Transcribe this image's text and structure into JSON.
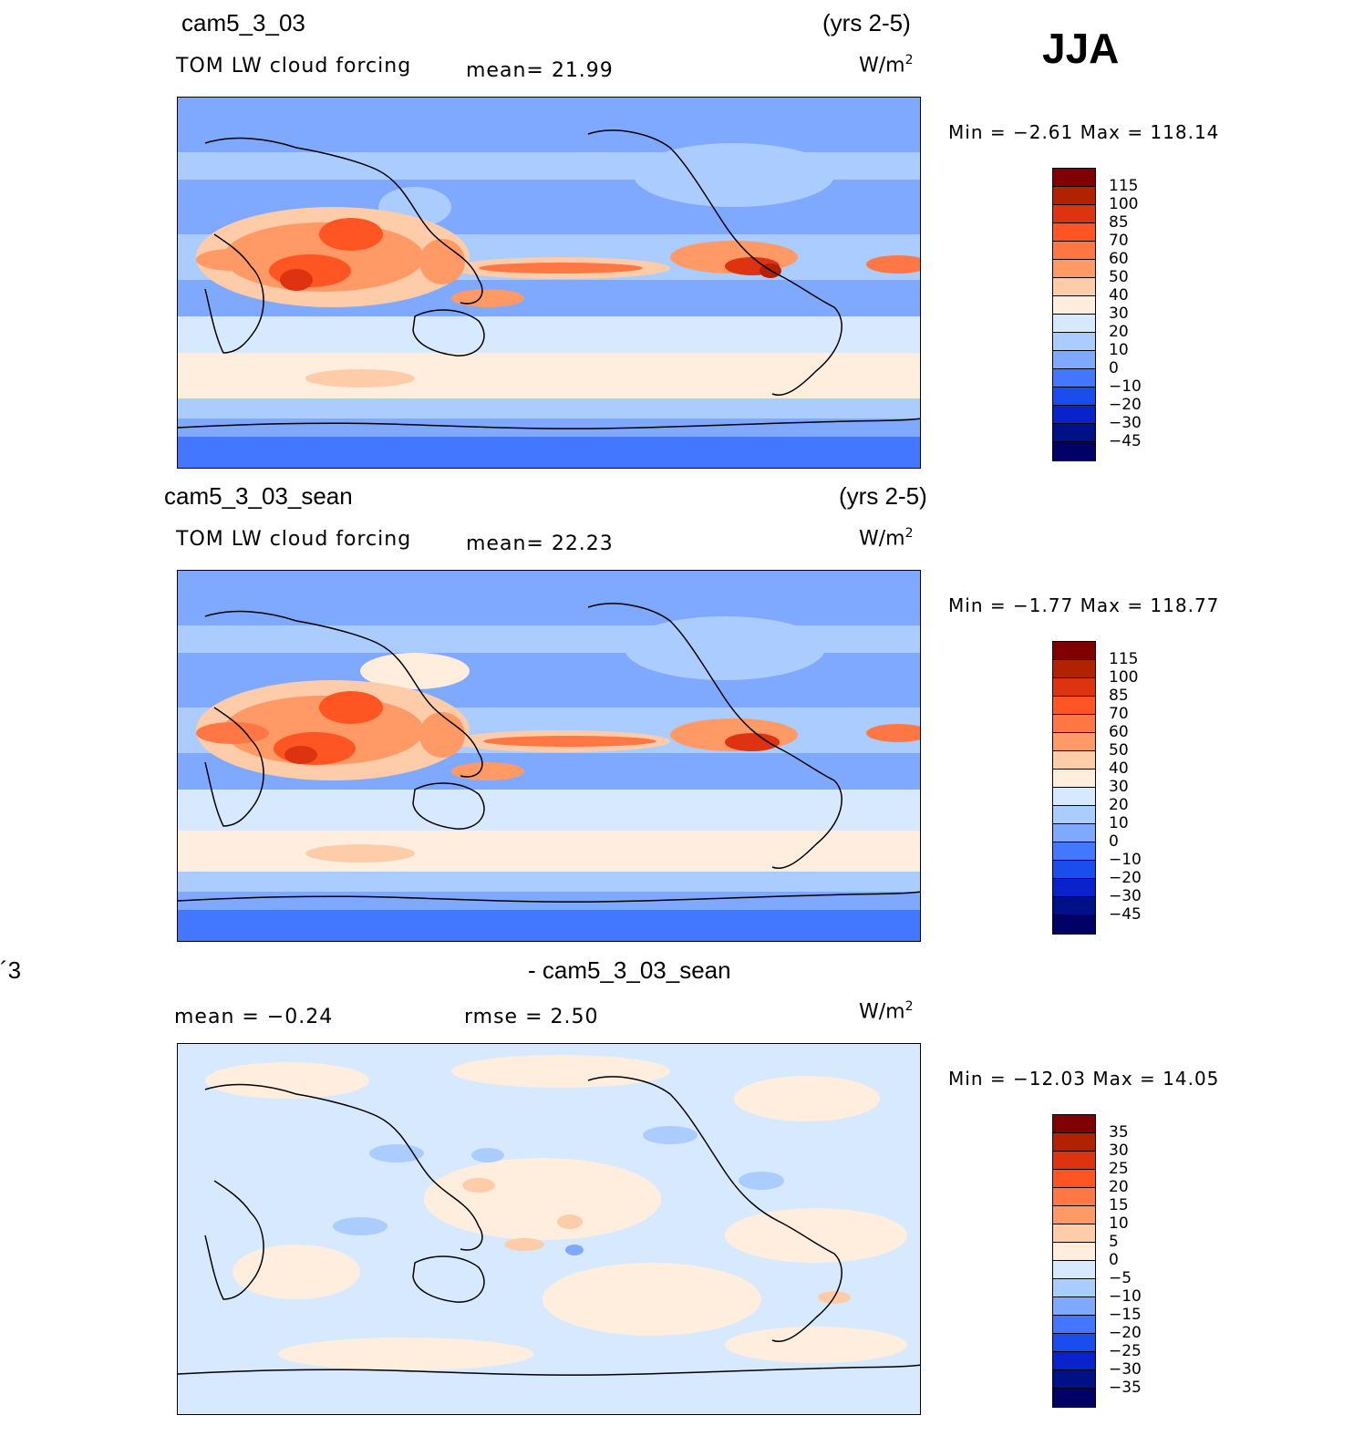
{
  "season": "JJA",
  "panels": [
    {
      "case": "cam5_3_03",
      "period": "(yrs 2-5)",
      "field": "TOM  LW  cloud  forcing",
      "stat1": "mean=   21.99",
      "stat2": "",
      "unit_base": "W/m",
      "unit_exp": "2",
      "minmax": "Min  =   −2.61  Max  =  118.14",
      "levels": [
        "115",
        "100",
        "85",
        "70",
        "60",
        "50",
        "40",
        "30",
        "20",
        "10",
        "0",
        "−10",
        "−20",
        "−30",
        "−45"
      ]
    },
    {
      "case": "cam5_3_03_sean",
      "period": "(yrs 2-5)",
      "field": "TOM  LW  cloud  forcing",
      "stat1": "mean=   22.23",
      "stat2": "",
      "unit_base": "W/m",
      "unit_exp": "2",
      "minmax": "Min  =   −1.77  Max  =  118.77",
      "levels": [
        "115",
        "100",
        "85",
        "70",
        "60",
        "50",
        "40",
        "30",
        "20",
        "10",
        "0",
        "−10",
        "−20",
        "−30",
        "−45"
      ]
    },
    {
      "case_left": "´3",
      "case": "- cam5_3_03_sean",
      "stat1": "mean  =    −0.24",
      "stat2": "rmse  =     2.50",
      "unit_base": "W/m",
      "unit_exp": "2",
      "minmax": "Min  = −12.03  Max  =    14.05",
      "levels": [
        "35",
        "30",
        "25",
        "20",
        "15",
        "10",
        "5",
        "0",
        "−5",
        "−10",
        "−15",
        "−20",
        "−25",
        "−30",
        "−35"
      ]
    }
  ],
  "palette": [
    "#800000",
    "#b22200",
    "#dd3311",
    "#ff5522",
    "#ff7744",
    "#ff9966",
    "#ffccaa",
    "#ffeedd",
    "#d6e9ff",
    "#aaccff",
    "#7fa8ff",
    "#4477ff",
    "#1a4dee",
    "#0a22cc",
    "#001188",
    "#000066"
  ]
}
